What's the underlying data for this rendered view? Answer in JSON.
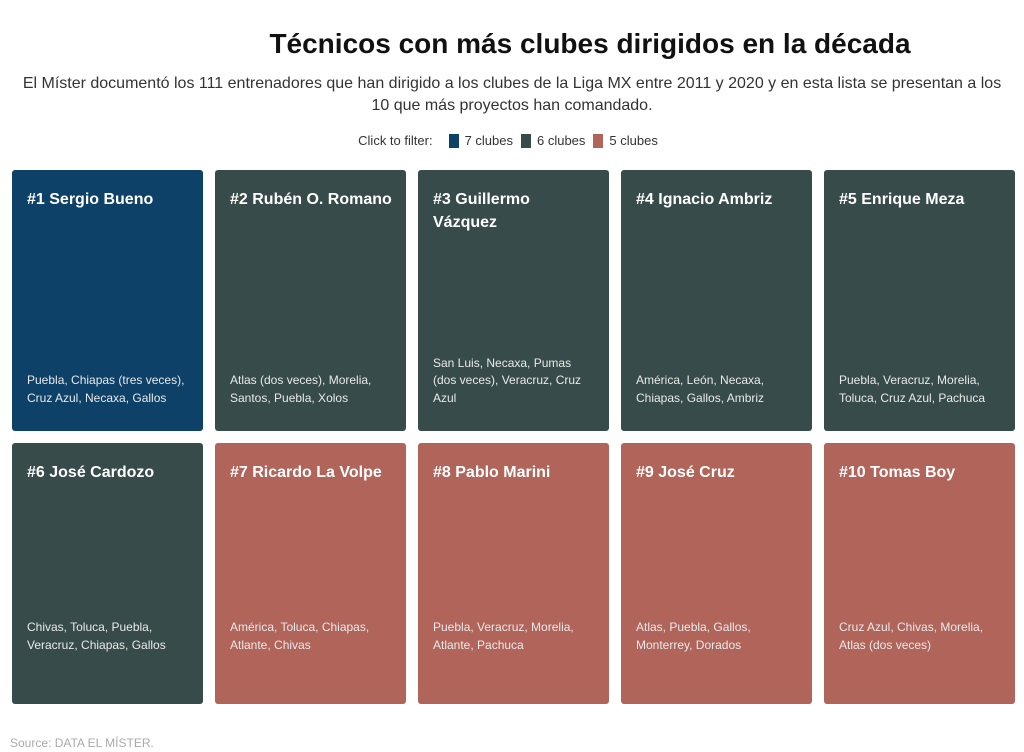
{
  "header": {
    "title": "Técnicos con más clubes dirigidos en la década",
    "subtitle": "El Míster documentó los 111 entrenadores que han dirigido a los clubes de la Liga MX entre 2011 y 2020 y en esta lista se presentan a los 10 que más proyectos han comandado."
  },
  "legend": {
    "label": "Click to filter:",
    "items": [
      {
        "label": "7 clubes",
        "color": "#0d4168"
      },
      {
        "label": "6 clubes",
        "color": "#374b4a"
      },
      {
        "label": "5 clubes",
        "color": "#b0645a"
      }
    ]
  },
  "chart_data": {
    "type": "table",
    "cards": [
      {
        "title": "#1 Sergio Bueno",
        "clubs": "Puebla, Chiapas (tres veces), Cruz Azul, Necaxa, Gallos",
        "group": "7 clubes"
      },
      {
        "title": "#2 Rubén O. Romano",
        "clubs": "Atlas (dos veces), Morelia, Santos, Puebla, Xolos",
        "group": "6 clubes"
      },
      {
        "title": "#3 Guillermo Vázquez",
        "clubs": "San Luis, Necaxa, Pumas (dos veces), Veracruz, Cruz Azul",
        "group": "6 clubes"
      },
      {
        "title": "#4 Ignacio Ambriz",
        "clubs": "América, León, Necaxa, Chiapas, Gallos, Ambriz",
        "group": "6 clubes"
      },
      {
        "title": "#5 Enrique Meza",
        "clubs": "Puebla, Veracruz, Morelia, Toluca, Cruz Azul, Pachuca",
        "group": "6 clubes"
      },
      {
        "title": "#6 José Cardozo",
        "clubs": "Chivas, Toluca, Puebla, Veracruz, Chiapas, Gallos",
        "group": "6 clubes"
      },
      {
        "title": "#7 Ricardo La Volpe",
        "clubs": "América, Toluca, Chiapas, Atlante, Chivas",
        "group": "5 clubes"
      },
      {
        "title": "#8 Pablo Marini",
        "clubs": "Puebla, Veracruz, Morelia, Atlante, Pachuca",
        "group": "5 clubes"
      },
      {
        "title": "#9 José Cruz",
        "clubs": "Atlas, Puebla, Gallos, Monterrey, Dorados",
        "group": "5 clubes"
      },
      {
        "title": "#10 Tomas Boy",
        "clubs": "Cruz Azul, Chivas, Morelia, Atlas (dos veces)",
        "group": "5 clubes"
      }
    ]
  },
  "footer": {
    "source": "Source: DATA EL MÍSTER."
  }
}
